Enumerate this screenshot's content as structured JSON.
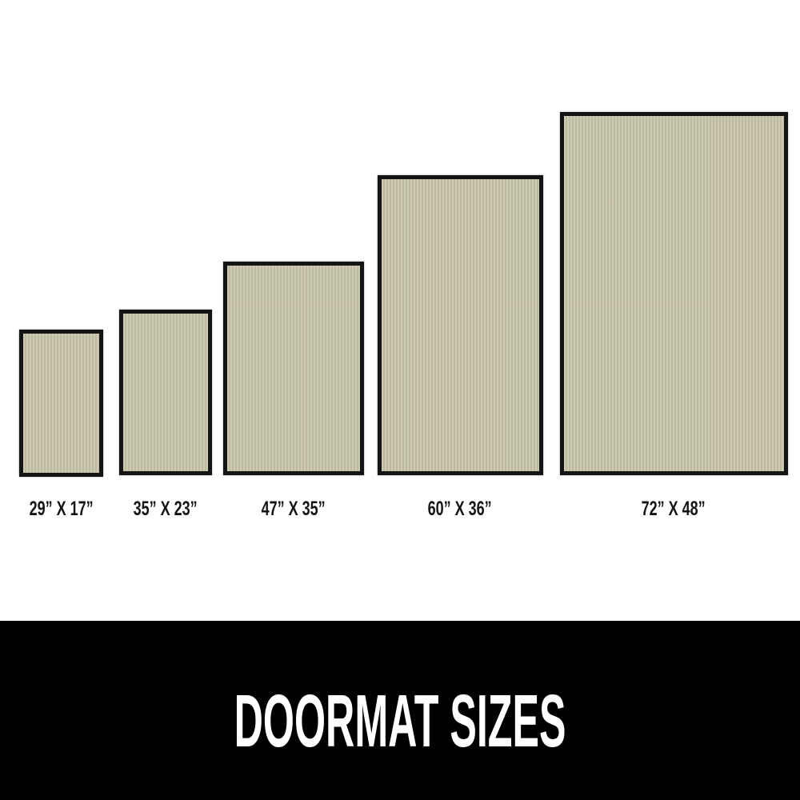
{
  "mats": [
    {
      "label": "29” X 17”"
    },
    {
      "label": "35” X 23”"
    },
    {
      "label": "47” X 35”"
    },
    {
      "label": "60” X 36”"
    },
    {
      "label": "72” X 48”"
    }
  ],
  "banner": {
    "title": "DOORMAT SIZES"
  },
  "colors": {
    "mat_fill": "#c8c5aa",
    "mat_border": "#141414",
    "banner_bg": "#000000",
    "banner_text": "#ffffff"
  }
}
